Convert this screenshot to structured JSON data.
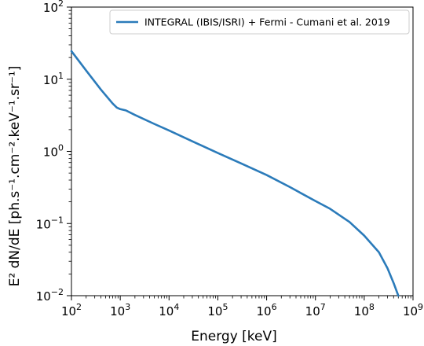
{
  "chart_data": {
    "type": "line",
    "xlabel": "Energy [keV]",
    "ylabel": "E² dN/dE [ph.s⁻¹.cm⁻².keV⁻¹.sr⁻¹]",
    "x_scale": "log",
    "y_scale": "log",
    "xlim": [
      100,
      1000000000
    ],
    "ylim": [
      0.01,
      100
    ],
    "x_ticks": [
      {
        "value": 100,
        "base": "10",
        "exp": "2"
      },
      {
        "value": 1000,
        "base": "10",
        "exp": "3"
      },
      {
        "value": 10000,
        "base": "10",
        "exp": "4"
      },
      {
        "value": 100000,
        "base": "10",
        "exp": "5"
      },
      {
        "value": 1000000,
        "base": "10",
        "exp": "6"
      },
      {
        "value": 10000000,
        "base": "10",
        "exp": "7"
      },
      {
        "value": 100000000,
        "base": "10",
        "exp": "8"
      },
      {
        "value": 1000000000,
        "base": "10",
        "exp": "9"
      }
    ],
    "y_ticks": [
      {
        "value": 0.01,
        "base": "10",
        "exp": "−2"
      },
      {
        "value": 0.1,
        "base": "10",
        "exp": "−1"
      },
      {
        "value": 1,
        "base": "10",
        "exp": "0"
      },
      {
        "value": 10,
        "base": "10",
        "exp": "1"
      },
      {
        "value": 100,
        "base": "10",
        "exp": "2"
      }
    ],
    "grid": false,
    "legend_position": "top-right",
    "series": [
      {
        "name": "INTEGRAL (IBIS/ISRI) + Fermi - Cumani et al. 2019",
        "color": "#2b7bba",
        "points": [
          [
            100,
            24.5
          ],
          [
            200,
            13.2
          ],
          [
            400,
            7.2
          ],
          [
            700,
            4.6
          ],
          [
            850,
            4.05
          ],
          [
            1000,
            3.85
          ],
          [
            1300,
            3.7
          ],
          [
            2000,
            3.2
          ],
          [
            5000,
            2.4
          ],
          [
            10000,
            1.95
          ],
          [
            30000,
            1.38
          ],
          [
            100000,
            0.95
          ],
          [
            300000,
            0.68
          ],
          [
            1000000,
            0.47
          ],
          [
            3000000,
            0.32
          ],
          [
            10000000,
            0.205
          ],
          [
            20000000,
            0.16
          ],
          [
            50000000,
            0.105
          ],
          [
            100000000,
            0.068
          ],
          [
            200000000,
            0.04
          ],
          [
            300000000,
            0.024
          ],
          [
            400000000,
            0.015
          ],
          [
            500000000,
            0.01
          ]
        ]
      }
    ]
  }
}
